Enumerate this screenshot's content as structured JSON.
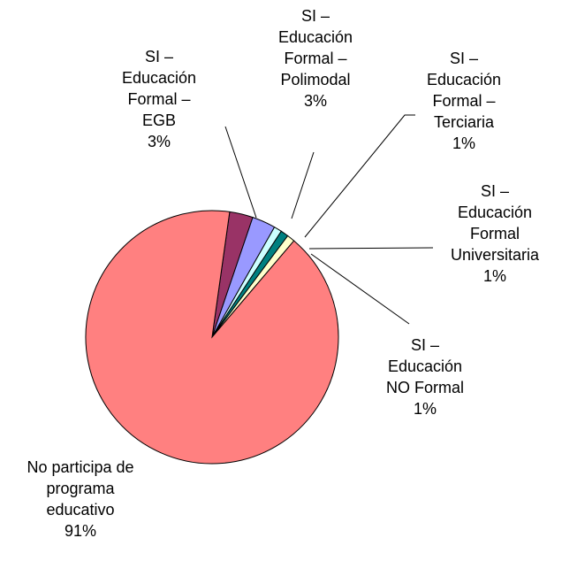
{
  "chart_data": {
    "type": "pie",
    "categories": [
      "SI – Educación Formal – EGB",
      "SI – Educación Formal – Polimodal",
      "SI – Educación Formal – Terciaria",
      "SI – Educación Formal Universitaria",
      "SI – Educación NO Formal",
      "No participa de programa educativo"
    ],
    "values": [
      3,
      3,
      1,
      1,
      1,
      91
    ],
    "value_labels": [
      "3%",
      "3%",
      "1%",
      "1%",
      "1%",
      "91%"
    ],
    "colors": [
      "#993366",
      "#9999ff",
      "#ccffff",
      "#008080",
      "#ffffcc",
      "#ff8080"
    ]
  }
}
